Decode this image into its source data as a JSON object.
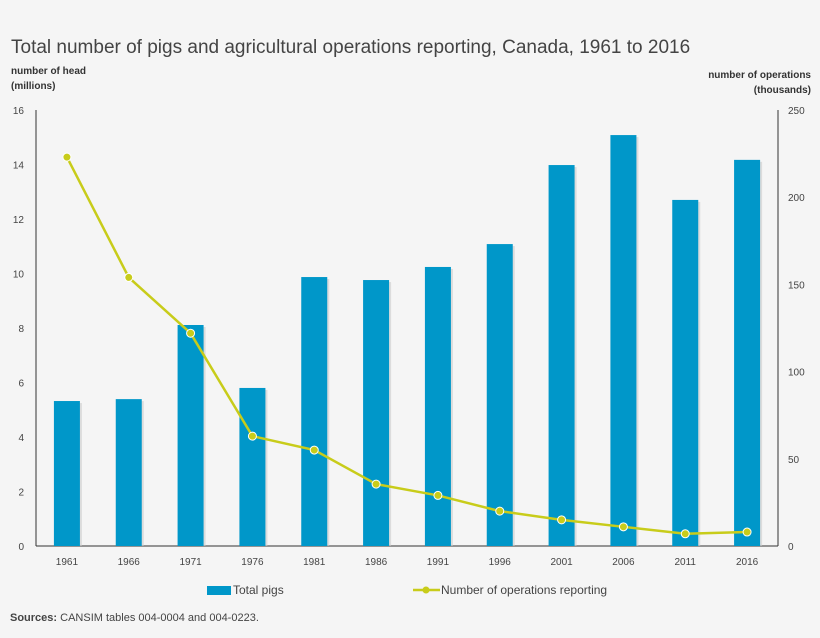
{
  "chart_data": {
    "type": "bar+line",
    "title": "Total number of pigs and agricultural operations reporting, Canada, 1961 to 2016",
    "ylabel_left": [
      "number of head",
      "(millions)"
    ],
    "ylabel_right": [
      "number of operations",
      "(thousands)"
    ],
    "categories": [
      "1961",
      "1966",
      "1971",
      "1976",
      "1981",
      "1986",
      "1991",
      "1996",
      "2001",
      "2006",
      "2011",
      "2016"
    ],
    "ylim_left": [
      0,
      16
    ],
    "yticks_left": [
      0,
      2,
      4,
      6,
      8,
      10,
      12,
      14,
      16
    ],
    "ylim_right": [
      0,
      250
    ],
    "yticks_right": [
      0,
      50,
      100,
      150,
      200,
      250
    ],
    "grid": false,
    "legend_position": "bottom",
    "series": [
      {
        "name": "Total pigs",
        "type": "bar",
        "axis": "left",
        "color": "#0097c9",
        "values": [
          5.32,
          5.39,
          8.11,
          5.8,
          9.87,
          9.76,
          10.24,
          11.08,
          13.98,
          15.08,
          12.7,
          14.17
        ]
      },
      {
        "name": "Number of operations reporting",
        "type": "line",
        "axis": "right",
        "color": "#c8cc1a",
        "values": [
          223,
          154,
          122,
          63,
          55,
          35.5,
          29,
          20,
          15,
          11,
          7,
          8
        ]
      }
    ],
    "source_label": "Sources:",
    "source_text": " CANSIM tables 004-0004 and 004-0223."
  }
}
